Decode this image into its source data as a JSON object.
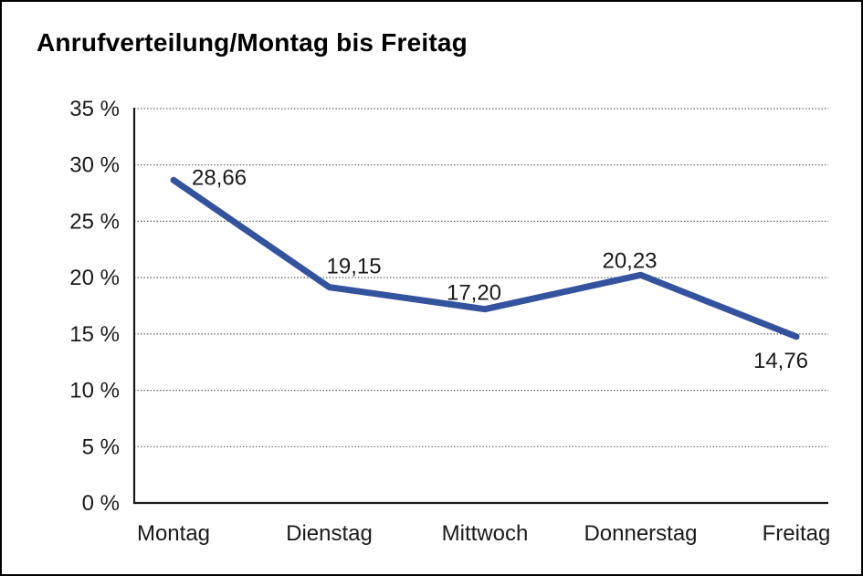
{
  "title": "Anrufverteilung/Montag bis Freitag",
  "chart_data": {
    "type": "line",
    "title": "Anrufverteilung/Montag bis Freitag",
    "categories": [
      "Montag",
      "Dienstag",
      "Mittwoch",
      "Donnerstag",
      "Freitag"
    ],
    "series": [
      {
        "name": "Anrufverteilung",
        "values": [
          28.66,
          19.15,
          17.2,
          20.23,
          14.76
        ],
        "value_labels": [
          "28,66",
          "19,15",
          "17,20",
          "20,23",
          "14,76"
        ]
      }
    ],
    "xlabel": "",
    "ylabel": "",
    "ylim": [
      0,
      35
    ],
    "y_tick_step": 5,
    "y_tick_labels": [
      "0 %",
      "5 %",
      "10 %",
      "15 %",
      "20 %",
      "25 %",
      "30 %",
      "35 %"
    ],
    "grid": "horizontal dotted gridlines",
    "legend_position": "none"
  },
  "colors": {
    "line": "#34539E",
    "text": "#1a1a1a",
    "gridline": "#595959",
    "axis": "#1a1a1a",
    "background": "#ffffff",
    "border": "#000000"
  }
}
